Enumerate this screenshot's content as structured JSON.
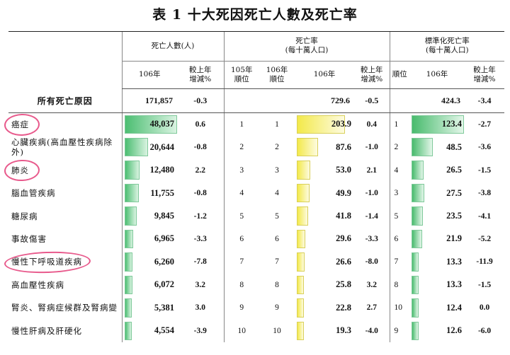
{
  "title": "表 1  十大死因死亡人數及死亡率",
  "headers": {
    "deaths_group": "死亡人數(人)",
    "rate_group": "死亡率",
    "rate_group_sub": "(每十萬人口)",
    "std_group": "標準化死亡率",
    "std_group_sub": "(每十萬人口)",
    "year": "106年",
    "change_line1": "較上年",
    "change_line2": "增減%",
    "rank105_line1": "105年",
    "rank105_line2": "順位",
    "rank106_line1": "106年",
    "rank106_line2": "順位",
    "rank": "順位"
  },
  "all_causes": {
    "name": "所有死亡原因",
    "deaths": "171,857",
    "deaths_change": "-0.3",
    "rate": "729.6",
    "rate_change": "-0.5",
    "std_rate": "424.3",
    "std_change": "-3.4"
  },
  "rows": [
    {
      "name": "癌症",
      "deaths": "48,037",
      "deaths_change": "0.6",
      "rank105": "1",
      "rank106": "1",
      "rate": "203.9",
      "rate_change": "0.4",
      "std_rank": "1",
      "std_rate": "123.4",
      "std_change": "-2.7"
    },
    {
      "name": "心臟疾病(高血壓性疾病除外)",
      "deaths": "20,644",
      "deaths_change": "-0.8",
      "rank105": "2",
      "rank106": "2",
      "rate": "87.6",
      "rate_change": "-1.0",
      "std_rank": "2",
      "std_rate": "48.5",
      "std_change": "-3.6"
    },
    {
      "name": "肺炎",
      "deaths": "12,480",
      "deaths_change": "2.2",
      "rank105": "3",
      "rank106": "3",
      "rate": "53.0",
      "rate_change": "2.1",
      "std_rank": "4",
      "std_rate": "26.5",
      "std_change": "-1.5"
    },
    {
      "name": "腦血管疾病",
      "deaths": "11,755",
      "deaths_change": "-0.8",
      "rank105": "4",
      "rank106": "4",
      "rate": "49.9",
      "rate_change": "-1.0",
      "std_rank": "3",
      "std_rate": "27.5",
      "std_change": "-3.8"
    },
    {
      "name": "糖尿病",
      "deaths": "9,845",
      "deaths_change": "-1.2",
      "rank105": "5",
      "rank106": "5",
      "rate": "41.8",
      "rate_change": "-1.4",
      "std_rank": "5",
      "std_rate": "23.5",
      "std_change": "-4.1"
    },
    {
      "name": "事故傷害",
      "deaths": "6,965",
      "deaths_change": "-3.3",
      "rank105": "6",
      "rank106": "6",
      "rate": "29.6",
      "rate_change": "-3.3",
      "std_rank": "6",
      "std_rate": "21.9",
      "std_change": "-5.2"
    },
    {
      "name": "慢性下呼吸道疾病",
      "deaths": "6,260",
      "deaths_change": "-7.8",
      "rank105": "7",
      "rank106": "7",
      "rate": "26.6",
      "rate_change": "-8.0",
      "std_rank": "7",
      "std_rate": "13.3",
      "std_change": "-11.9"
    },
    {
      "name": "高血壓性疾病",
      "deaths": "6,072",
      "deaths_change": "3.2",
      "rank105": "8",
      "rank106": "8",
      "rate": "25.8",
      "rate_change": "3.2",
      "std_rank": "8",
      "std_rate": "13.3",
      "std_change": "-1.5"
    },
    {
      "name": "腎炎、腎病症候群及腎病變",
      "deaths": "5,381",
      "deaths_change": "3.0",
      "rank105": "9",
      "rank106": "9",
      "rate": "22.8",
      "rate_change": "2.7",
      "std_rank": "10",
      "std_rate": "12.4",
      "std_change": "0.0"
    },
    {
      "name": "慢性肝病及肝硬化",
      "deaths": "4,554",
      "deaths_change": "-3.9",
      "rank105": "10",
      "rank106": "10",
      "rate": "19.3",
      "rate_change": "-4.0",
      "std_rank": "9",
      "std_rate": "12.6",
      "std_change": "-6.0"
    }
  ],
  "colors": {
    "deaths_bar": "#4cbe72",
    "rate_bar": "#f3e94a",
    "std_bar": "#48bb6d",
    "annotation": "#e85a8c"
  },
  "annotation_circles": [
    "癌症",
    "肺炎",
    "慢性下呼吸道疾病"
  ]
}
